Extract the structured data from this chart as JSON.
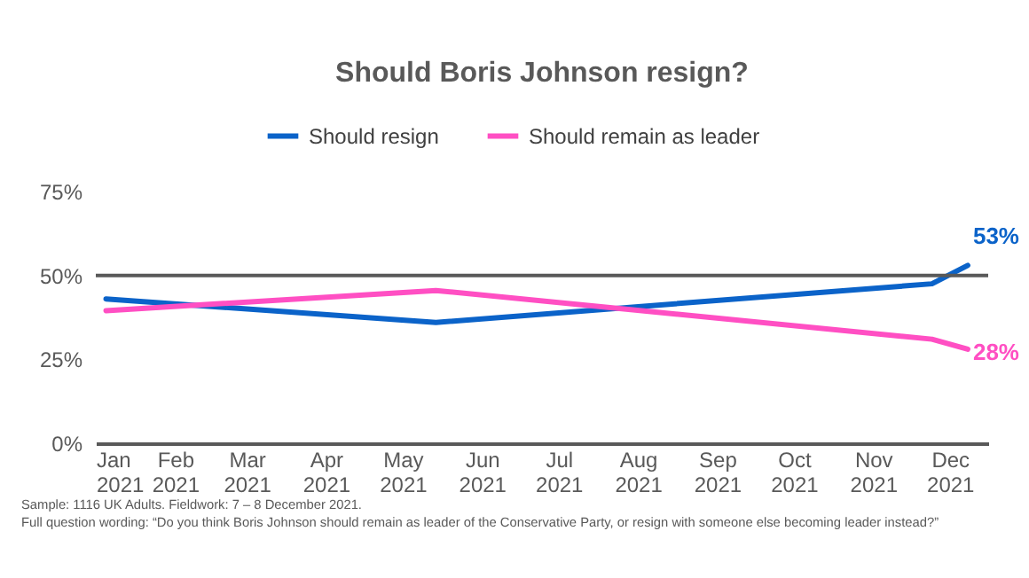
{
  "chart_data": {
    "type": "line",
    "title": "Should Boris Johnson resign?",
    "x": [
      "2021-01-05",
      "2021-05-14",
      "2021-11-24",
      "2021-12-08"
    ],
    "series": [
      {
        "name": "Should resign",
        "color": "#0b63c9",
        "values": [
          43,
          36,
          47.5,
          53
        ],
        "value_labels": [
          null,
          null,
          null,
          "53%"
        ]
      },
      {
        "name": "Should remain as leader",
        "color": "#ff4fc3",
        "values": [
          39.5,
          45.5,
          31,
          28
        ],
        "value_labels": [
          null,
          null,
          null,
          "28%"
        ]
      }
    ],
    "xlim": [
      "2021-01-01",
      "2021-12-16"
    ],
    "xticks": [
      {
        "value": "2021-01",
        "label": "Jan 2021"
      },
      {
        "value": "2021-02",
        "label": "Feb 2021"
      },
      {
        "value": "2021-03",
        "label": "Mar 2021"
      },
      {
        "value": "2021-04",
        "label": "Apr 2021"
      },
      {
        "value": "2021-05",
        "label": "May 2021"
      },
      {
        "value": "2021-06",
        "label": "Jun 2021"
      },
      {
        "value": "2021-07",
        "label": "Jul 2021"
      },
      {
        "value": "2021-08",
        "label": "Aug 2021"
      },
      {
        "value": "2021-09",
        "label": "Sep 2021"
      },
      {
        "value": "2021-10",
        "label": "Oct 2021"
      },
      {
        "value": "2021-11",
        "label": "Nov 2021"
      },
      {
        "value": "2021-12",
        "label": "Dec 2021"
      }
    ],
    "ylim": [
      0,
      75
    ],
    "yticks": [
      {
        "value": 0,
        "label": "0%"
      },
      {
        "value": 25,
        "label": "25%"
      },
      {
        "value": 50,
        "label": "50%"
      },
      {
        "value": 75,
        "label": "75%"
      }
    ],
    "ref_lines": [
      {
        "axis": "y",
        "value": 50,
        "color": "#595959"
      }
    ],
    "grid": false,
    "legend": "top",
    "marker": "none",
    "line_style": "solid",
    "annotations": [
      "Sample: 1116 UK Adults. Fieldwork: 7 – 8 December 2021.",
      "Full question wording: “Do you think Boris Johnson should remain as leader of the Conservative Party, or resign with someone else becoming leader instead?”"
    ]
  }
}
